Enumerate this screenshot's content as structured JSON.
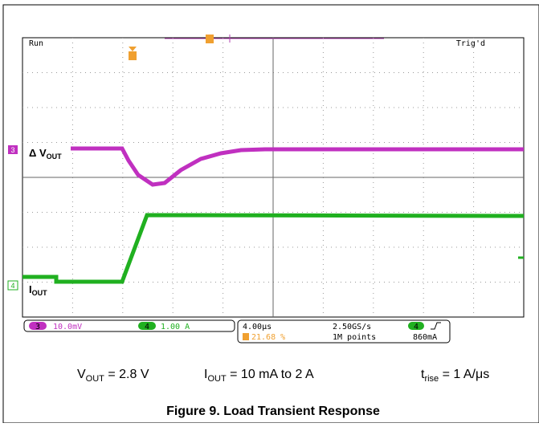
{
  "scope": {
    "status_left": "Run",
    "status_right": "Trig'd",
    "channels": [
      {
        "number": "3",
        "label": "Δ V",
        "label_sub": "OUT",
        "scale": "10.0mV"
      },
      {
        "number": "4",
        "label": "I",
        "label_sub": "OUT",
        "scale": "1.00 A"
      }
    ],
    "timebase": "4.00μs",
    "trigger_position": "21.68 %",
    "sample_rate": "2.50GS/s",
    "record_length": "1M points",
    "trigger_channel": "4",
    "trigger_level": "860mA"
  },
  "conditions": [
    {
      "main": "V",
      "sub": "OUT",
      "rest": " = 2.8 V"
    },
    {
      "main": "I",
      "sub": "OUT",
      "rest": " = 10 mA to 2 A"
    },
    {
      "main": "t",
      "sub": "rise",
      "rest": " = 1 A/μs"
    }
  ],
  "caption": "Figure 9. Load Transient Response"
}
